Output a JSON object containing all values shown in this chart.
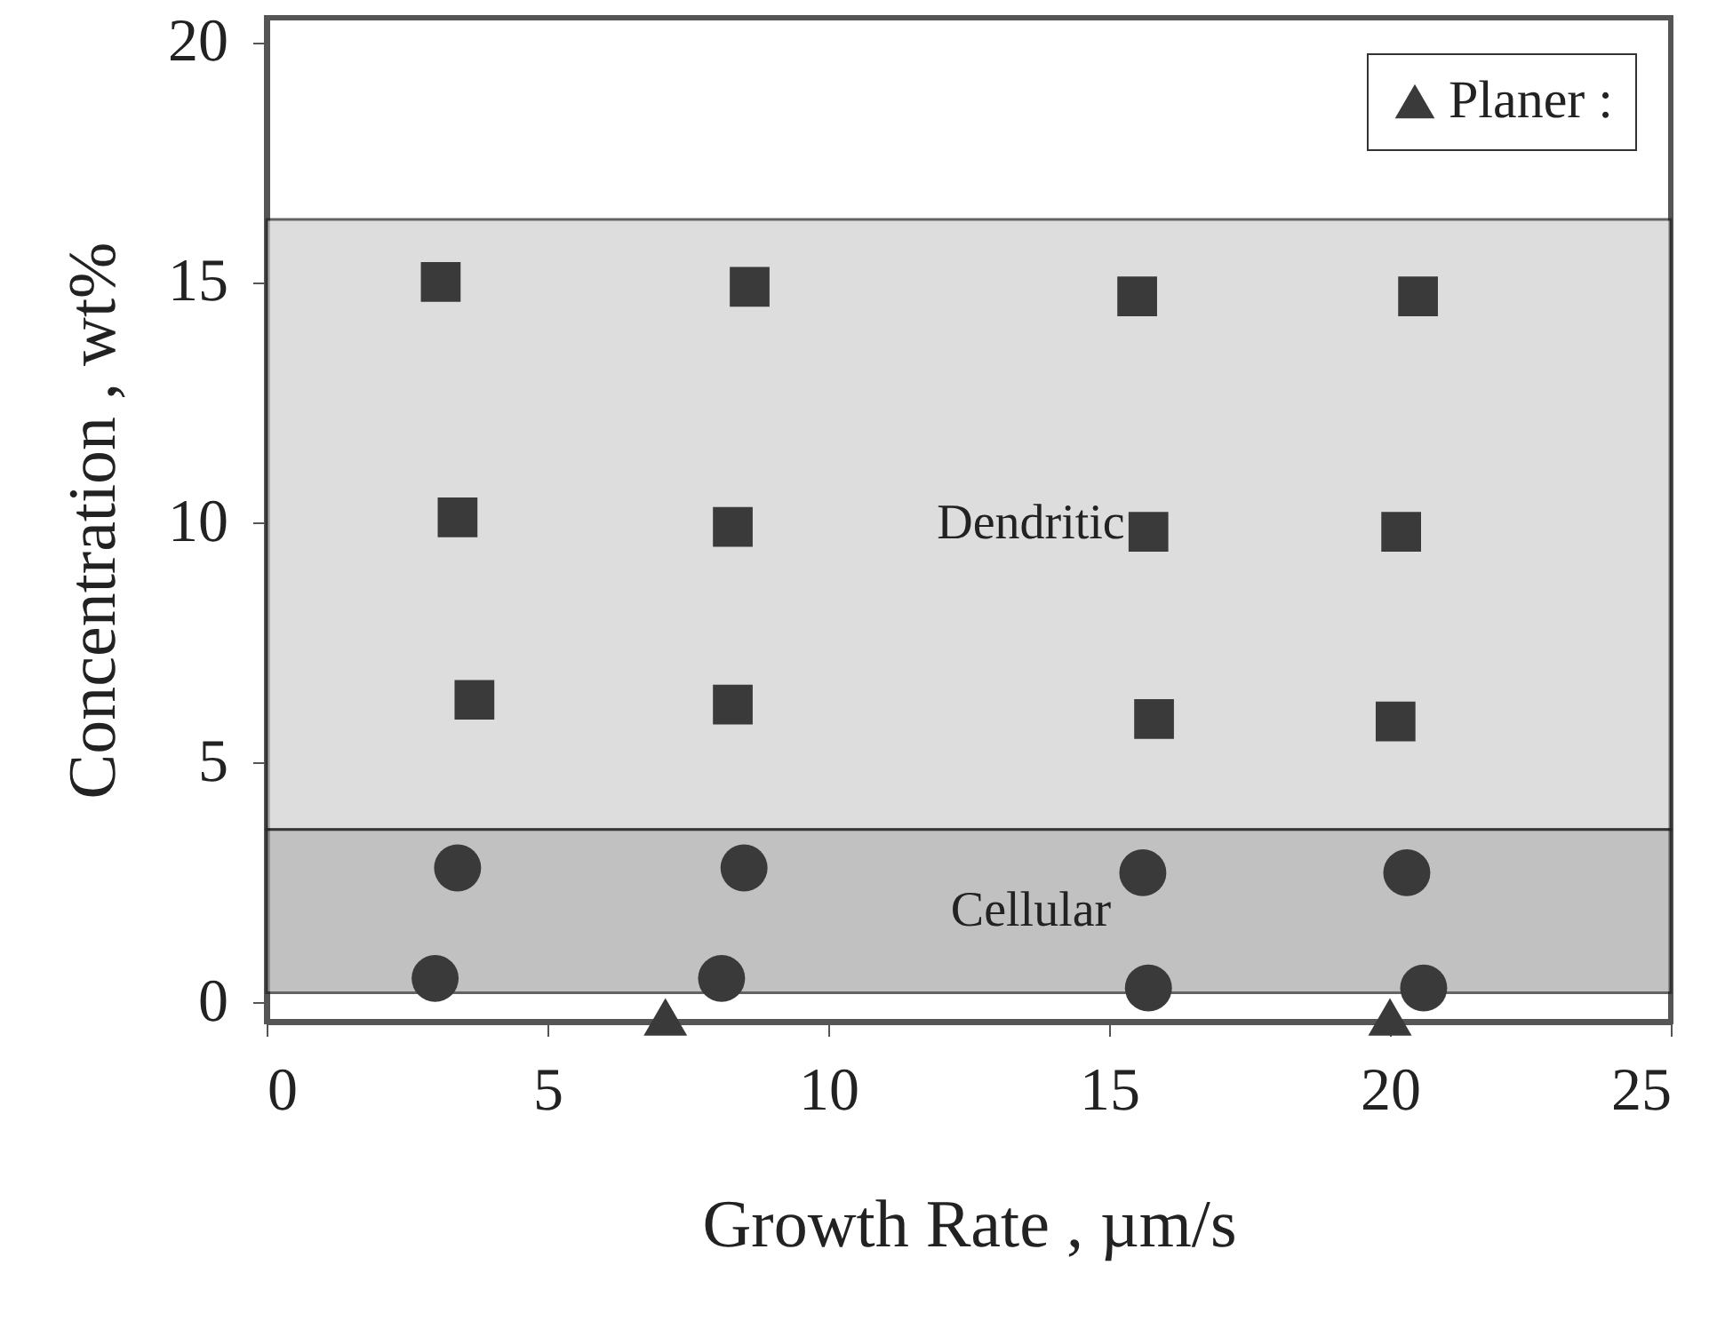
{
  "chart_data": {
    "type": "scatter",
    "xlabel": "Growth Rate      ,      µm/s",
    "ylabel": "Concentration   ,   wt%",
    "xlim": [
      0,
      25
    ],
    "ylim": [
      -0.4,
      20.5
    ],
    "xticks": [
      0,
      5,
      10,
      15,
      20,
      25
    ],
    "yticks": [
      0,
      5,
      10,
      15,
      20
    ],
    "grid": false,
    "legend": "top right",
    "bands": [
      {
        "axis": "y",
        "from": 3.6,
        "to": 16.3,
        "label": "Dendritic",
        "color": "#d0d0d0"
      },
      {
        "axis": "y",
        "from": 0.2,
        "to": 3.6,
        "label": "Cellular",
        "color": "#a8a8a8"
      }
    ],
    "series": [
      {
        "marker": "square",
        "color": "#3a3a3a",
        "x": [
          3.1,
          8.6,
          15.5,
          20.5,
          3.4,
          8.3,
          15.7,
          20.2,
          3.7,
          8.3,
          15.8,
          20.1
        ],
        "values": [
          15.0,
          14.9,
          14.7,
          14.7,
          10.1,
          9.9,
          9.8,
          9.8,
          6.3,
          6.2,
          5.9,
          5.85
        ]
      },
      {
        "marker": "circle",
        "color": "#3a3a3a",
        "x": [
          3.4,
          8.5,
          15.6,
          20.3,
          3.0,
          8.1,
          15.7,
          20.6
        ],
        "values": [
          2.8,
          2.8,
          2.7,
          2.7,
          0.5,
          0.5,
          0.3,
          0.3
        ]
      },
      {
        "marker": "triangle",
        "name": "Planer :",
        "color": "#3a3a3a",
        "x": [
          7.1,
          20.0
        ],
        "values": [
          -0.3,
          -0.3
        ]
      }
    ]
  }
}
